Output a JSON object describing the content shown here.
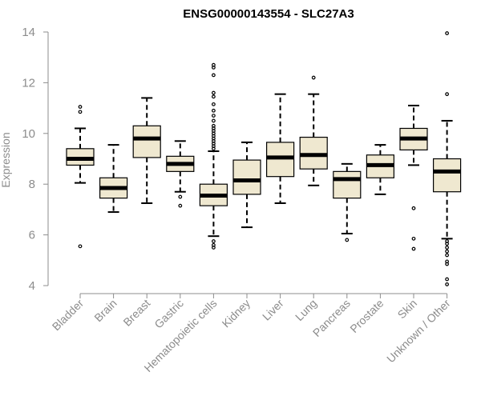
{
  "chart_data": {
    "type": "boxplot",
    "title": "ENSG00000143554 - SLC27A3",
    "xlabel": "",
    "ylabel": "Expression",
    "ylim": [
      3.9,
      14.2
    ],
    "yticks": [
      4,
      6,
      8,
      10,
      12,
      14
    ],
    "box_fill": "#efe8d0",
    "box_stroke": "#000000",
    "text_color": "#8c8c8c",
    "categories": [
      "Bladder",
      "Brain",
      "Breast",
      "Gastric",
      "Hematopoietic cells",
      "Kidney",
      "Liver",
      "Lung",
      "Pancreas",
      "Prostate",
      "Skin",
      "Unknown / Other"
    ],
    "boxes": [
      {
        "category": "Bladder",
        "whisker_low": 8.05,
        "q1": 8.75,
        "median": 9.0,
        "q3": 9.4,
        "whisker_high": 10.2,
        "outliers": [
          5.55,
          10.85,
          11.05
        ]
      },
      {
        "category": "Brain",
        "whisker_low": 6.9,
        "q1": 7.45,
        "median": 7.85,
        "q3": 8.25,
        "whisker_high": 9.55,
        "outliers": []
      },
      {
        "category": "Breast",
        "whisker_low": 7.25,
        "q1": 9.05,
        "median": 9.8,
        "q3": 10.3,
        "whisker_high": 11.4,
        "outliers": []
      },
      {
        "category": "Gastric",
        "whisker_low": 7.7,
        "q1": 8.5,
        "median": 8.8,
        "q3": 9.1,
        "whisker_high": 9.7,
        "outliers": [
          7.15,
          7.5
        ]
      },
      {
        "category": "Hematopoietic cells",
        "whisker_low": 5.95,
        "q1": 7.15,
        "median": 7.55,
        "q3": 8.0,
        "whisker_high": 9.3,
        "outliers": [
          5.5,
          5.6,
          5.75,
          9.4,
          9.5,
          9.6,
          9.7,
          9.8,
          9.9,
          10.0,
          10.1,
          10.2,
          10.3,
          10.5,
          10.7,
          10.9,
          11.15,
          11.45,
          11.6,
          12.3,
          12.6,
          12.7
        ]
      },
      {
        "category": "Kidney",
        "whisker_low": 6.3,
        "q1": 7.6,
        "median": 8.15,
        "q3": 8.95,
        "whisker_high": 9.65,
        "outliers": []
      },
      {
        "category": "Liver",
        "whisker_low": 7.25,
        "q1": 8.3,
        "median": 9.05,
        "q3": 9.65,
        "whisker_high": 11.55,
        "outliers": []
      },
      {
        "category": "Lung",
        "whisker_low": 7.95,
        "q1": 8.6,
        "median": 9.15,
        "q3": 9.85,
        "whisker_high": 11.55,
        "outliers": [
          12.2
        ]
      },
      {
        "category": "Pancreas",
        "whisker_low": 6.05,
        "q1": 7.45,
        "median": 8.2,
        "q3": 8.5,
        "whisker_high": 8.8,
        "outliers": [
          5.8
        ]
      },
      {
        "category": "Prostate",
        "whisker_low": 7.6,
        "q1": 8.25,
        "median": 8.75,
        "q3": 9.15,
        "whisker_high": 9.55,
        "outliers": []
      },
      {
        "category": "Skin",
        "whisker_low": 8.75,
        "q1": 9.35,
        "median": 9.8,
        "q3": 10.2,
        "whisker_high": 11.1,
        "outliers": [
          5.45,
          5.85,
          7.05
        ]
      },
      {
        "category": "Unknown / Other",
        "whisker_low": 5.85,
        "q1": 7.7,
        "median": 8.5,
        "q3": 9.0,
        "whisker_high": 10.5,
        "outliers": [
          4.05,
          4.25,
          4.85,
          4.95,
          5.2,
          5.35,
          5.5,
          5.65,
          5.75,
          11.55,
          13.95
        ]
      }
    ]
  }
}
